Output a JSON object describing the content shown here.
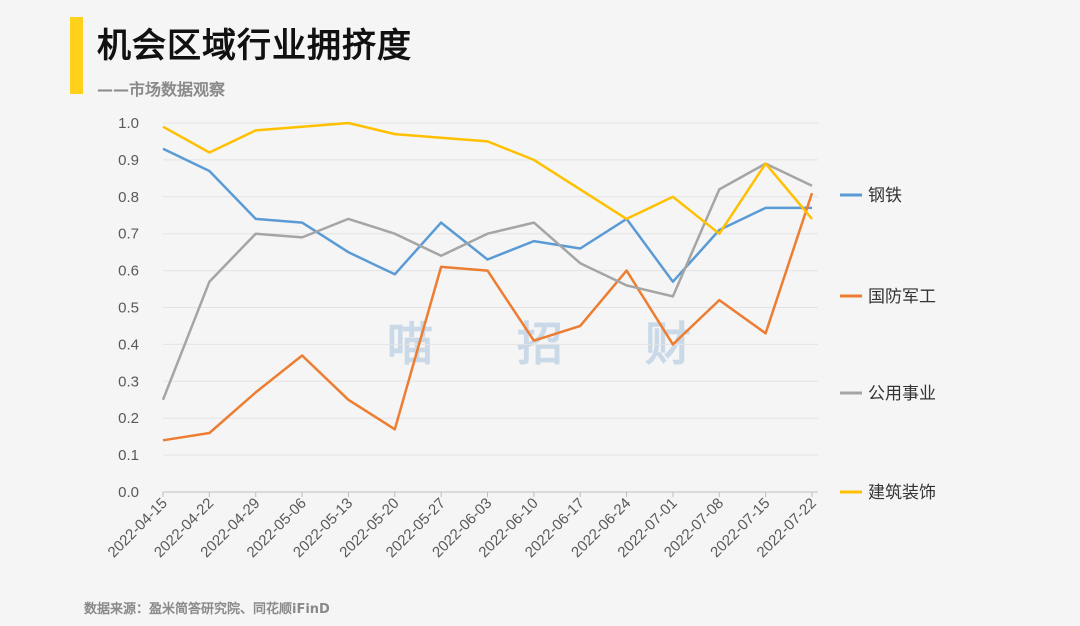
{
  "header": {
    "title": "机会区域行业拥挤度",
    "subtitle": "——市场数据观察",
    "accent_color": "#ffd11a"
  },
  "footer": {
    "source": "数据来源：盈米简答研究院、同花顺iFinD"
  },
  "watermark": {
    "chars": [
      "喵",
      "招",
      "财"
    ]
  },
  "chart_data": {
    "type": "line",
    "title": "",
    "xlabel": "",
    "ylabel": "",
    "ylim": [
      0,
      1.0
    ],
    "yticks": [
      "0.0",
      "0.1",
      "0.2",
      "0.3",
      "0.4",
      "0.5",
      "0.6",
      "0.7",
      "0.8",
      "0.9",
      "1.0"
    ],
    "grid": "horizontal",
    "legend_position": "right",
    "categories": [
      "2022-04-15",
      "2022-04-22",
      "2022-04-29",
      "2022-05-06",
      "2022-05-13",
      "2022-05-20",
      "2022-05-27",
      "2022-06-03",
      "2022-06-10",
      "2022-06-17",
      "2022-06-24",
      "2022-07-01",
      "2022-07-08",
      "2022-07-15",
      "2022-07-22"
    ],
    "series": [
      {
        "name": "钢铁",
        "color": "#5b9bd5",
        "values": [
          0.93,
          0.87,
          0.74,
          0.73,
          0.65,
          0.59,
          0.73,
          0.63,
          0.68,
          0.66,
          0.74,
          0.57,
          0.71,
          0.77,
          0.77
        ]
      },
      {
        "name": "国防军工",
        "color": "#ed7d31",
        "values": [
          0.14,
          0.16,
          0.27,
          0.37,
          0.25,
          0.17,
          0.61,
          0.6,
          0.41,
          0.45,
          0.6,
          0.4,
          0.52,
          0.43,
          0.81
        ]
      },
      {
        "name": "公用事业",
        "color": "#a5a5a5",
        "values": [
          0.25,
          0.57,
          0.7,
          0.69,
          0.74,
          0.7,
          0.64,
          0.7,
          0.73,
          0.62,
          0.56,
          0.53,
          0.82,
          0.89,
          0.83
        ]
      },
      {
        "name": "建筑装饰",
        "color": "#ffc000",
        "values": [
          0.99,
          0.92,
          0.98,
          0.99,
          1.0,
          0.97,
          0.96,
          0.95,
          0.9,
          0.82,
          0.74,
          0.8,
          0.7,
          0.89,
          0.74
        ]
      }
    ]
  }
}
